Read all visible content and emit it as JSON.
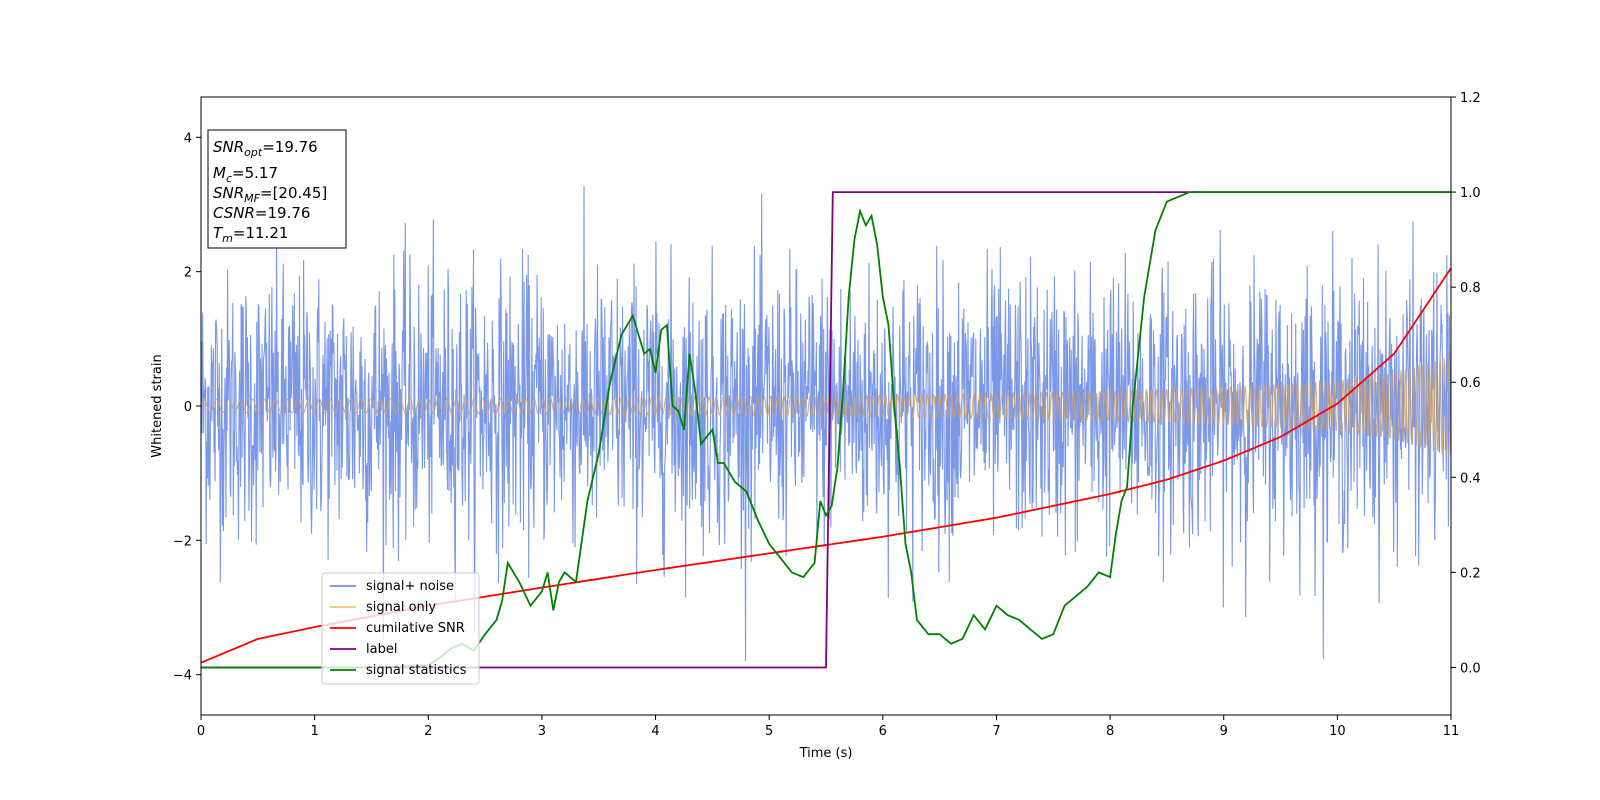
{
  "chart_data": {
    "type": "line",
    "xlabel": "Time (s)",
    "ylabel": "Whitened strain",
    "xlim": [
      0,
      11
    ],
    "ylim": [
      -4.6,
      4.6
    ],
    "y2lim": [
      -0.1,
      1.2
    ],
    "xticks": [
      "0",
      "1",
      "2",
      "3",
      "4",
      "5",
      "6",
      "7",
      "8",
      "9",
      "10",
      "11"
    ],
    "yticks": [
      "−4",
      "−2",
      "0",
      "2",
      "4"
    ],
    "y2ticks": [
      "0.0",
      "0.2",
      "0.4",
      "0.6",
      "0.8",
      "1.0",
      "1.2"
    ],
    "legend_position": "lower-left",
    "legend": [
      {
        "label": "signal+ noise",
        "color": "#6f8ee6"
      },
      {
        "label": "signal only",
        "color": "#f2c37a"
      },
      {
        "label": "cumilative SNR",
        "color": "#ff0000"
      },
      {
        "label": "label",
        "color": "#800080"
      },
      {
        "label": "signal statistics",
        "color": "#008000"
      }
    ],
    "series": [
      {
        "name": "signal+ noise",
        "axis": "left",
        "color": "#6f8ee6",
        "description_values": {
          "approx_std": 1.0,
          "max": 4.2,
          "min": -4.15
        }
      },
      {
        "name": "signal only",
        "axis": "left",
        "color": "#f2c37a",
        "envelope": {
          "x": [
            0,
            2,
            4,
            6,
            8,
            9,
            10,
            10.5,
            11
          ],
          "amp": [
            0.1,
            0.11,
            0.13,
            0.16,
            0.22,
            0.28,
            0.38,
            0.5,
            0.75
          ]
        }
      },
      {
        "name": "cumilative SNR",
        "axis": "right",
        "color": "#ff0000",
        "x": [
          0,
          0.5,
          1,
          2,
          3,
          4,
          5,
          6,
          7,
          8,
          8.5,
          9,
          9.5,
          10,
          10.5,
          11
        ],
        "y": [
          0.01,
          0.06,
          0.085,
          0.13,
          0.168,
          0.205,
          0.24,
          0.275,
          0.315,
          0.365,
          0.395,
          0.435,
          0.485,
          0.555,
          0.66,
          0.84
        ]
      },
      {
        "name": "label",
        "axis": "right",
        "color": "#800080",
        "x": [
          0,
          5.5,
          5.56,
          11
        ],
        "y": [
          0,
          0,
          1,
          1
        ]
      },
      {
        "name": "signal statistics",
        "axis": "right",
        "color": "#008000",
        "x": [
          0,
          0.5,
          1,
          1.5,
          2,
          2.1,
          2.2,
          2.3,
          2.4,
          2.5,
          2.6,
          2.65,
          2.7,
          2.8,
          2.9,
          3.0,
          3.05,
          3.1,
          3.15,
          3.2,
          3.3,
          3.4,
          3.5,
          3.6,
          3.7,
          3.8,
          3.9,
          3.95,
          4.0,
          4.05,
          4.1,
          4.15,
          4.2,
          4.25,
          4.3,
          4.35,
          4.4,
          4.5,
          4.55,
          4.6,
          4.7,
          4.8,
          4.9,
          5.0,
          5.1,
          5.2,
          5.3,
          5.4,
          5.45,
          5.5,
          5.55,
          5.6,
          5.65,
          5.7,
          5.75,
          5.8,
          5.85,
          5.9,
          5.95,
          6.0,
          6.05,
          6.1,
          6.15,
          6.2,
          6.25,
          6.3,
          6.4,
          6.5,
          6.6,
          6.7,
          6.8,
          6.9,
          7.0,
          7.1,
          7.2,
          7.3,
          7.4,
          7.5,
          7.6,
          7.7,
          7.8,
          7.9,
          8.0,
          8.05,
          8.1,
          8.15,
          8.2,
          8.3,
          8.4,
          8.5,
          8.6,
          8.7,
          8.8,
          9,
          9.5,
          10,
          10.5,
          11
        ],
        "y": [
          0.0,
          0.0,
          0.0,
          0.0,
          0.005,
          0.02,
          0.04,
          0.05,
          0.035,
          0.07,
          0.1,
          0.14,
          0.22,
          0.18,
          0.13,
          0.16,
          0.2,
          0.12,
          0.18,
          0.2,
          0.18,
          0.35,
          0.45,
          0.6,
          0.7,
          0.74,
          0.66,
          0.67,
          0.62,
          0.71,
          0.72,
          0.55,
          0.54,
          0.5,
          0.66,
          0.58,
          0.47,
          0.5,
          0.43,
          0.43,
          0.39,
          0.37,
          0.31,
          0.26,
          0.23,
          0.2,
          0.19,
          0.22,
          0.35,
          0.32,
          0.34,
          0.42,
          0.58,
          0.78,
          0.9,
          0.96,
          0.93,
          0.95,
          0.89,
          0.78,
          0.72,
          0.55,
          0.42,
          0.26,
          0.2,
          0.1,
          0.07,
          0.07,
          0.05,
          0.06,
          0.11,
          0.08,
          0.13,
          0.11,
          0.1,
          0.08,
          0.06,
          0.07,
          0.13,
          0.15,
          0.17,
          0.2,
          0.19,
          0.28,
          0.35,
          0.38,
          0.55,
          0.78,
          0.92,
          0.98,
          0.99,
          1.0,
          1.0,
          1.0,
          1.0,
          1.0,
          1.0,
          1.0
        ]
      }
    ]
  },
  "stats_box": {
    "snr_opt_sym": "SNR",
    "snr_opt_sub": "opt",
    "snr_opt_val": "=19.76",
    "mc_sym": "M",
    "mc_sub": "c",
    "mc_val": "=5.17",
    "snr_mf_sym": "SNR",
    "snr_mf_sub": "MF",
    "snr_mf_val": "=[20.45]",
    "csnr_sym": "CSNR",
    "csnr_val": "=19.76",
    "tm_sym": "T",
    "tm_sub": "m",
    "tm_val": "=11.21"
  }
}
